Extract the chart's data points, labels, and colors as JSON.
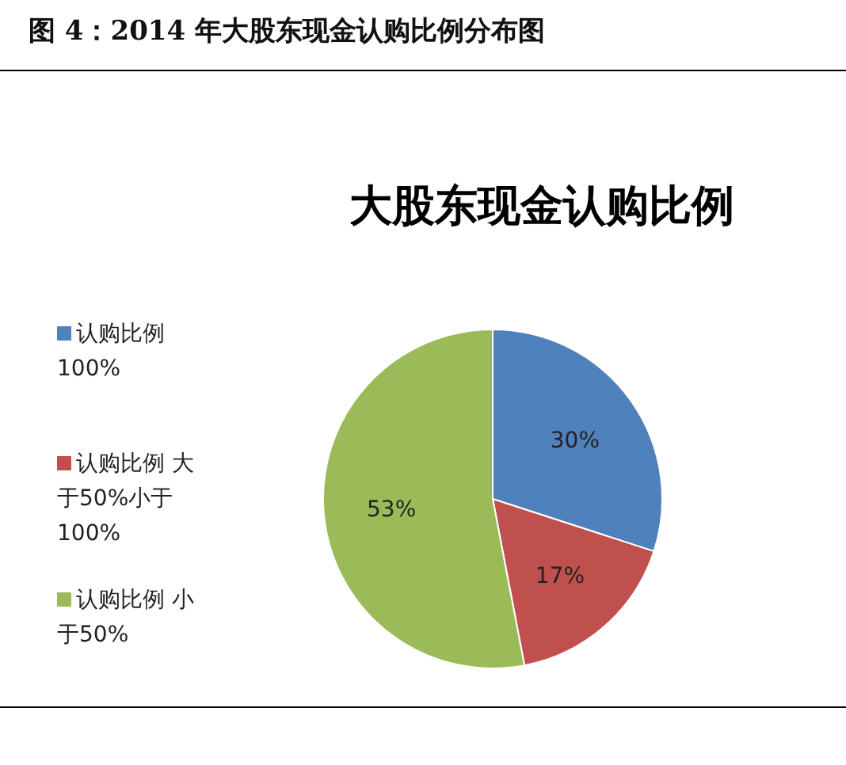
{
  "chart_data": {
    "type": "pie",
    "title": "图 4：2014 年大股东现金认购比例分布图",
    "subtitle": "大股东现金认购比例",
    "categories": [
      "认购比例100%",
      "认购比例 大于50%小于100%",
      "认购比例 小于50%"
    ],
    "values": [
      30,
      17,
      53
    ],
    "colors": [
      "#4f81bd",
      "#c0504d",
      "#9bbb59"
    ],
    "value_labels": [
      "30%",
      "17%",
      "53%"
    ],
    "legend": "left"
  }
}
